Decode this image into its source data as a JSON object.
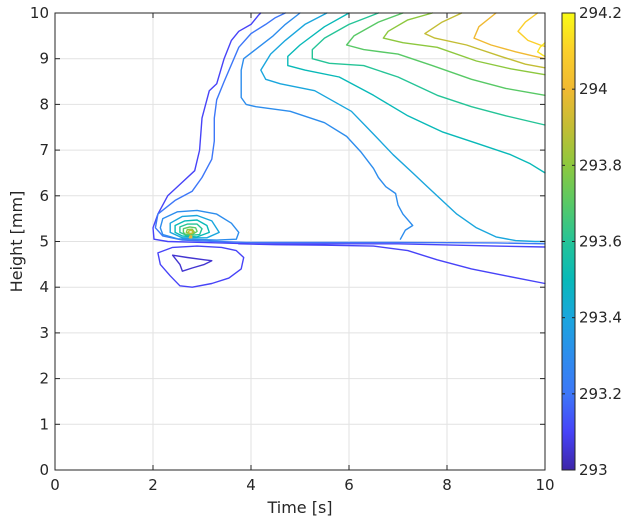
{
  "chart_data": {
    "type": "contour",
    "xlabel": "Time [s]",
    "ylabel": "Height [mm]",
    "xlim": [
      0,
      10
    ],
    "ylim": [
      0,
      10
    ],
    "x_ticks": [
      0,
      2,
      4,
      6,
      8,
      10
    ],
    "y_ticks": [
      0,
      1,
      2,
      3,
      4,
      5,
      6,
      7,
      8,
      9,
      10
    ],
    "grid": true,
    "colormap": "parula",
    "colorbar": {
      "position": "right",
      "range": [
        293,
        294.2
      ],
      "ticks": [
        293,
        293.2,
        293.4,
        293.6,
        293.8,
        294,
        294.2
      ],
      "tick_labels": [
        "293",
        "293.2",
        "293.4",
        "293.6",
        "293.8",
        "294",
        "294.2"
      ]
    },
    "colormap_stops": [
      {
        "value": 293.0,
        "color": "#3e26a8"
      },
      {
        "value": 293.1,
        "color": "#4743f8"
      },
      {
        "value": 293.2,
        "color": "#3d77f8"
      },
      {
        "value": 293.3,
        "color": "#2d8ded"
      },
      {
        "value": 293.4,
        "color": "#1aa6dd"
      },
      {
        "value": 293.5,
        "color": "#08b9b8"
      },
      {
        "value": 293.6,
        "color": "#25c497"
      },
      {
        "value": 293.7,
        "color": "#58c966"
      },
      {
        "value": 293.8,
        "color": "#8dc83e"
      },
      {
        "value": 293.9,
        "color": "#c3bd34"
      },
      {
        "value": 294.0,
        "color": "#f0b932"
      },
      {
        "value": 294.1,
        "color": "#fbcf2a"
      },
      {
        "value": 294.2,
        "color": "#f9fb15"
      }
    ],
    "contours": [
      {
        "level": 293.05,
        "points": [
          [
            2.4,
            4.7
          ],
          [
            2.7,
            4.65
          ],
          [
            3.05,
            4.6
          ],
          [
            3.2,
            4.58
          ],
          [
            3.05,
            4.5
          ],
          [
            2.8,
            4.42
          ],
          [
            2.6,
            4.35
          ],
          [
            2.55,
            4.5
          ],
          [
            2.4,
            4.7
          ]
        ]
      },
      {
        "level": 293.1,
        "points": [
          [
            2.1,
            4.75
          ],
          [
            2.4,
            4.87
          ],
          [
            2.9,
            4.9
          ],
          [
            3.4,
            4.87
          ],
          [
            3.7,
            4.8
          ],
          [
            3.85,
            4.65
          ],
          [
            3.8,
            4.4
          ],
          [
            3.55,
            4.2
          ],
          [
            3.2,
            4.08
          ],
          [
            2.8,
            4.0
          ],
          [
            2.55,
            4.03
          ],
          [
            2.35,
            4.25
          ],
          [
            2.15,
            4.5
          ],
          [
            2.1,
            4.75
          ]
        ]
      },
      {
        "level": 293.1,
        "points": [
          [
            3.75,
            4.95
          ],
          [
            4.5,
            4.93
          ],
          [
            5.5,
            4.92
          ],
          [
            6.5,
            4.9
          ],
          [
            7.2,
            4.8
          ],
          [
            7.8,
            4.6
          ],
          [
            8.5,
            4.4
          ],
          [
            9.2,
            4.25
          ],
          [
            10,
            4.08
          ]
        ]
      },
      {
        "level": 293.1,
        "points": [
          [
            4.2,
            10
          ],
          [
            4.15,
            9.95
          ],
          [
            4.0,
            9.75
          ],
          [
            3.75,
            9.6
          ],
          [
            3.6,
            9.4
          ],
          [
            3.45,
            9.0
          ],
          [
            3.3,
            8.45
          ],
          [
            3.15,
            8.3
          ],
          [
            3.0,
            7.7
          ],
          [
            2.95,
            7.0
          ],
          [
            2.85,
            6.55
          ],
          [
            2.6,
            6.3
          ],
          [
            2.3,
            6.0
          ],
          [
            2.1,
            5.6
          ],
          [
            2.0,
            5.3
          ],
          [
            2.02,
            5.05
          ],
          [
            2.3,
            5.0
          ],
          [
            3.0,
            4.98
          ],
          [
            4.0,
            4.95
          ],
          [
            5.0,
            4.95
          ],
          [
            7.0,
            4.95
          ],
          [
            9.0,
            4.9
          ],
          [
            10,
            4.88
          ]
        ]
      },
      {
        "level": 293.2,
        "points": [
          [
            4.7,
            10
          ],
          [
            4.5,
            9.9
          ],
          [
            4.3,
            9.75
          ],
          [
            4.0,
            9.55
          ],
          [
            3.75,
            9.25
          ],
          [
            3.45,
            8.5
          ],
          [
            3.3,
            8.1
          ],
          [
            3.25,
            7.7
          ],
          [
            3.25,
            7.2
          ],
          [
            3.2,
            6.8
          ],
          [
            3.0,
            6.4
          ],
          [
            2.8,
            6.1
          ],
          [
            2.45,
            5.9
          ],
          [
            2.1,
            5.6
          ],
          [
            2.05,
            5.3
          ],
          [
            2.2,
            5.12
          ],
          [
            2.6,
            5.03
          ],
          [
            3.3,
            5.0
          ],
          [
            3.9,
            4.98
          ],
          [
            5.0,
            4.98
          ],
          [
            7.0,
            4.98
          ],
          [
            9.0,
            4.97
          ],
          [
            10,
            4.95
          ]
        ]
      },
      {
        "level": 293.3,
        "points": [
          [
            5.0,
            10
          ],
          [
            4.7,
            9.75
          ],
          [
            4.45,
            9.5
          ],
          [
            4.15,
            9.25
          ],
          [
            3.85,
            9.0
          ],
          [
            3.8,
            8.75
          ],
          [
            3.8,
            8.15
          ],
          [
            3.9,
            8.0
          ],
          [
            4.1,
            7.95
          ],
          [
            4.8,
            7.85
          ],
          [
            5.5,
            7.6
          ],
          [
            5.95,
            7.3
          ],
          [
            6.25,
            6.95
          ],
          [
            6.5,
            6.6
          ],
          [
            6.6,
            6.4
          ],
          [
            6.75,
            6.2
          ],
          [
            6.95,
            6.05
          ],
          [
            7.0,
            5.8
          ],
          [
            7.1,
            5.6
          ],
          [
            7.3,
            5.35
          ],
          [
            7.15,
            5.25
          ],
          [
            7.05,
            5.05
          ]
        ]
      },
      {
        "level": 293.3,
        "points": [
          [
            2.2,
            5.15
          ],
          [
            2.15,
            5.3
          ],
          [
            2.2,
            5.5
          ],
          [
            2.5,
            5.65
          ],
          [
            2.9,
            5.68
          ],
          [
            3.3,
            5.6
          ],
          [
            3.6,
            5.4
          ],
          [
            3.75,
            5.2
          ],
          [
            3.7,
            5.05
          ],
          [
            3.3,
            5.03
          ],
          [
            2.5,
            5.06
          ],
          [
            2.2,
            5.15
          ]
        ]
      },
      {
        "level": 293.4,
        "points": [
          [
            5.55,
            10
          ],
          [
            5.1,
            9.75
          ],
          [
            4.7,
            9.4
          ],
          [
            4.4,
            9.1
          ],
          [
            4.2,
            8.75
          ],
          [
            4.3,
            8.55
          ],
          [
            4.6,
            8.45
          ],
          [
            5.3,
            8.3
          ],
          [
            6.05,
            7.85
          ],
          [
            6.5,
            7.35
          ],
          [
            6.9,
            6.9
          ],
          [
            7.3,
            6.5
          ],
          [
            7.6,
            6.2
          ],
          [
            7.85,
            5.95
          ],
          [
            8.2,
            5.6
          ],
          [
            8.6,
            5.3
          ],
          [
            9.0,
            5.1
          ],
          [
            9.4,
            5.02
          ],
          [
            9.8,
            5.0
          ],
          [
            10,
            5.0
          ]
        ]
      },
      {
        "level": 293.4,
        "points": [
          [
            2.35,
            5.2
          ],
          [
            2.35,
            5.4
          ],
          [
            2.6,
            5.55
          ],
          [
            2.9,
            5.57
          ],
          [
            3.2,
            5.45
          ],
          [
            3.35,
            5.2
          ],
          [
            3.1,
            5.08
          ],
          [
            2.6,
            5.08
          ],
          [
            2.35,
            5.2
          ]
        ]
      },
      {
        "level": 293.5,
        "points": [
          [
            6.0,
            10
          ],
          [
            5.5,
            9.7
          ],
          [
            5.0,
            9.3
          ],
          [
            4.75,
            9.05
          ],
          [
            4.75,
            8.85
          ],
          [
            5.1,
            8.75
          ],
          [
            5.8,
            8.6
          ],
          [
            6.5,
            8.2
          ],
          [
            7.2,
            7.75
          ],
          [
            7.9,
            7.4
          ],
          [
            8.6,
            7.15
          ],
          [
            9.3,
            6.9
          ],
          [
            9.7,
            6.7
          ],
          [
            10,
            6.5
          ]
        ]
      },
      {
        "level": 293.5,
        "points": [
          [
            2.45,
            5.2
          ],
          [
            2.45,
            5.35
          ],
          [
            2.65,
            5.45
          ],
          [
            2.9,
            5.47
          ],
          [
            3.1,
            5.35
          ],
          [
            3.15,
            5.2
          ],
          [
            2.9,
            5.1
          ],
          [
            2.6,
            5.12
          ],
          [
            2.45,
            5.2
          ]
        ]
      },
      {
        "level": 293.6,
        "points": [
          [
            6.6,
            10
          ],
          [
            6.0,
            9.75
          ],
          [
            5.5,
            9.45
          ],
          [
            5.25,
            9.2
          ],
          [
            5.25,
            9.0
          ],
          [
            5.6,
            8.9
          ],
          [
            6.3,
            8.85
          ],
          [
            7.0,
            8.6
          ],
          [
            7.8,
            8.2
          ],
          [
            8.5,
            7.95
          ],
          [
            9.2,
            7.75
          ],
          [
            10,
            7.55
          ]
        ]
      },
      {
        "level": 293.6,
        "points": [
          [
            2.55,
            5.2
          ],
          [
            2.55,
            5.32
          ],
          [
            2.7,
            5.38
          ],
          [
            2.9,
            5.38
          ],
          [
            3.0,
            5.28
          ],
          [
            2.95,
            5.15
          ],
          [
            2.7,
            5.13
          ],
          [
            2.55,
            5.2
          ]
        ]
      },
      {
        "level": 293.7,
        "points": [
          [
            7.1,
            10
          ],
          [
            6.6,
            9.8
          ],
          [
            6.1,
            9.5
          ],
          [
            5.95,
            9.3
          ],
          [
            6.3,
            9.2
          ],
          [
            7.0,
            9.1
          ],
          [
            7.7,
            8.85
          ],
          [
            8.5,
            8.55
          ],
          [
            9.2,
            8.35
          ],
          [
            10,
            8.2
          ]
        ]
      },
      {
        "level": 293.7,
        "points": [
          [
            2.62,
            5.2
          ],
          [
            2.62,
            5.28
          ],
          [
            2.75,
            5.32
          ],
          [
            2.87,
            5.3
          ],
          [
            2.9,
            5.22
          ],
          [
            2.8,
            5.15
          ],
          [
            2.66,
            5.16
          ],
          [
            2.62,
            5.2
          ]
        ]
      },
      {
        "level": 293.8,
        "points": [
          [
            7.7,
            10
          ],
          [
            7.2,
            9.85
          ],
          [
            6.8,
            9.6
          ],
          [
            6.7,
            9.45
          ],
          [
            7.1,
            9.35
          ],
          [
            7.8,
            9.25
          ],
          [
            8.6,
            8.95
          ],
          [
            9.3,
            8.78
          ],
          [
            10,
            8.65
          ]
        ]
      },
      {
        "level": 293.8,
        "points": [
          [
            2.68,
            5.2
          ],
          [
            2.7,
            5.26
          ],
          [
            2.8,
            5.27
          ],
          [
            2.84,
            5.21
          ],
          [
            2.78,
            5.17
          ],
          [
            2.68,
            5.2
          ]
        ]
      },
      {
        "level": 293.9,
        "points": [
          [
            8.3,
            10
          ],
          [
            7.9,
            9.8
          ],
          [
            7.55,
            9.55
          ],
          [
            7.75,
            9.45
          ],
          [
            8.4,
            9.3
          ],
          [
            9.1,
            9.05
          ],
          [
            9.6,
            8.88
          ],
          [
            10,
            8.8
          ]
        ]
      },
      {
        "level": 293.9,
        "points": [
          [
            2.72,
            5.2
          ],
          [
            2.74,
            5.24
          ],
          [
            2.8,
            5.24
          ],
          [
            2.81,
            5.19
          ],
          [
            2.76,
            5.17
          ],
          [
            2.72,
            5.2
          ]
        ]
      },
      {
        "level": 294.0,
        "points": [
          [
            9.0,
            10
          ],
          [
            8.65,
            9.7
          ],
          [
            8.55,
            9.45
          ],
          [
            8.9,
            9.3
          ],
          [
            9.4,
            9.15
          ],
          [
            9.8,
            9.05
          ],
          [
            10,
            9.0
          ]
        ]
      },
      {
        "level": 294.0,
        "points": [
          [
            2.74,
            5.08
          ],
          [
            2.76,
            5.12
          ],
          [
            2.79,
            5.12
          ],
          [
            2.79,
            5.08
          ],
          [
            2.74,
            5.08
          ]
        ]
      },
      {
        "level": 294.1,
        "points": [
          [
            9.85,
            10
          ],
          [
            9.6,
            9.8
          ],
          [
            9.45,
            9.6
          ],
          [
            9.65,
            9.4
          ],
          [
            9.9,
            9.3
          ],
          [
            10,
            9.27
          ]
        ]
      },
      {
        "level": 294.15,
        "points": [
          [
            10,
            9.35
          ],
          [
            9.9,
            9.25
          ],
          [
            9.85,
            9.15
          ],
          [
            9.95,
            9.08
          ],
          [
            10,
            9.05
          ]
        ]
      }
    ]
  }
}
